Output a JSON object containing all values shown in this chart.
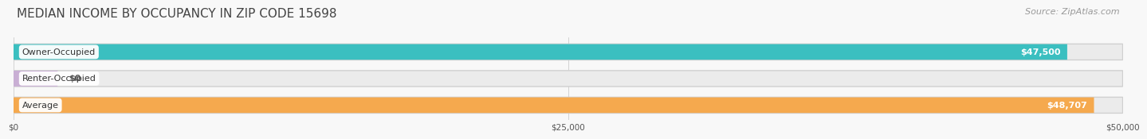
{
  "title": "MEDIAN INCOME BY OCCUPANCY IN ZIP CODE 15698",
  "source": "Source: ZipAtlas.com",
  "categories": [
    "Owner-Occupied",
    "Renter-Occupied",
    "Average"
  ],
  "values": [
    47500,
    0,
    48707
  ],
  "bar_colors": [
    "#3bbfc0",
    "#c9afd4",
    "#f5a94e"
  ],
  "value_labels": [
    "$47,500",
    "$0",
    "$48,707"
  ],
  "xlim": [
    0,
    50000
  ],
  "xticks": [
    0,
    25000,
    50000
  ],
  "xtick_labels": [
    "$0",
    "$25,000",
    "$50,000"
  ],
  "bg_color": "#f8f8f8",
  "bar_bg_color": "#e8e8e8",
  "title_fontsize": 11,
  "source_fontsize": 8,
  "label_fontsize": 8,
  "value_fontsize": 8,
  "bar_height": 0.6,
  "renter_value": 2500
}
